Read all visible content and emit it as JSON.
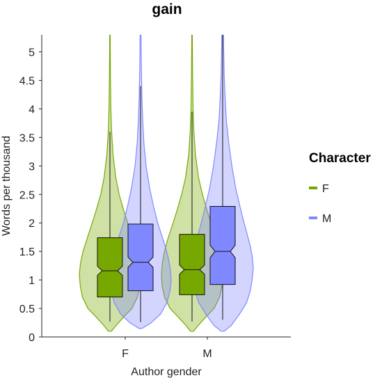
{
  "chart_data": {
    "type": "violin",
    "title": "gain",
    "xlabel": "Author gender",
    "ylabel": "Words per thousand",
    "categories": [
      "F",
      "M"
    ],
    "ylim": [
      0,
      5.3
    ],
    "yticks": [
      0,
      0.5,
      1,
      1.5,
      2,
      2.5,
      3,
      3.5,
      4,
      4.5,
      5
    ],
    "ytick_labels": [
      "0",
      "0.5",
      "1",
      "1.5",
      "2",
      "2.5",
      "3",
      "3.5",
      "4",
      "4.5",
      "5"
    ],
    "grid": false,
    "legend": {
      "title": "Character",
      "placement": "right",
      "entries": [
        {
          "label": "F",
          "color": "#77a800"
        },
        {
          "label": "M",
          "color": "#8088ff"
        }
      ]
    },
    "series": [
      {
        "name": "F",
        "color": "#77a800",
        "groups": [
          {
            "category": "F",
            "violin_min": 0.1,
            "violin_max": 5.3,
            "density_y": [
              0.1,
              0.2,
              0.35,
              0.5,
              0.7,
              0.9,
              1.1,
              1.3,
              1.5,
              1.7,
              1.9,
              2.2,
              2.5,
              2.8,
              3.2,
              3.6,
              4.0,
              4.5,
              5.0,
              5.3
            ],
            "density_w": [
              0.05,
              0.2,
              0.45,
              0.72,
              0.9,
              0.97,
              1.0,
              0.96,
              0.88,
              0.76,
              0.64,
              0.46,
              0.3,
              0.19,
              0.1,
              0.055,
              0.03,
              0.018,
              0.01,
              0.008
            ],
            "whisker_low": 0.27,
            "q1": 0.7,
            "notch_low": 1.08,
            "median": 1.16,
            "notch_high": 1.24,
            "q3": 1.74,
            "whisker_high": 3.6
          },
          {
            "category": "M",
            "violin_min": 0.1,
            "violin_max": 5.3,
            "density_y": [
              0.1,
              0.2,
              0.35,
              0.5,
              0.7,
              0.9,
              1.1,
              1.3,
              1.5,
              1.7,
              1.9,
              2.2,
              2.5,
              2.8,
              3.2,
              3.6,
              4.0,
              4.5,
              5.0,
              5.3
            ],
            "density_w": [
              0.05,
              0.2,
              0.45,
              0.72,
              0.9,
              0.98,
              1.0,
              0.97,
              0.9,
              0.8,
              0.68,
              0.5,
              0.34,
              0.21,
              0.11,
              0.06,
              0.034,
              0.02,
              0.012,
              0.008
            ],
            "whisker_low": 0.27,
            "q1": 0.74,
            "notch_low": 1.1,
            "median": 1.18,
            "notch_high": 1.26,
            "q3": 1.8,
            "whisker_high": 3.95
          }
        ]
      },
      {
        "name": "M",
        "color": "#8088ff",
        "groups": [
          {
            "category": "F",
            "violin_min": 0.15,
            "violin_max": 5.3,
            "density_y": [
              0.15,
              0.25,
              0.4,
              0.6,
              0.8,
              1.0,
              1.2,
              1.4,
              1.6,
              1.8,
              2.0,
              2.3,
              2.6,
              3.0,
              3.4,
              3.8,
              4.2,
              4.6,
              5.0,
              5.3
            ],
            "density_w": [
              0.05,
              0.35,
              0.65,
              0.86,
              0.96,
              1.0,
              0.97,
              0.9,
              0.8,
              0.68,
              0.56,
              0.42,
              0.3,
              0.18,
              0.11,
              0.07,
              0.045,
              0.03,
              0.02,
              0.015
            ],
            "whisker_low": 0.26,
            "q1": 0.81,
            "notch_low": 1.22,
            "median": 1.31,
            "notch_high": 1.4,
            "q3": 1.98,
            "whisker_high": 4.4
          },
          {
            "category": "M",
            "violin_min": 0.1,
            "violin_max": 5.3,
            "density_y": [
              0.1,
              0.2,
              0.4,
              0.6,
              0.8,
              1.0,
              1.2,
              1.4,
              1.6,
              1.8,
              2.0,
              2.3,
              2.6,
              3.0,
              3.4,
              3.8,
              4.2,
              4.6,
              5.0,
              5.3
            ],
            "density_w": [
              0.05,
              0.28,
              0.55,
              0.78,
              0.9,
              0.96,
              1.0,
              0.97,
              0.9,
              0.8,
              0.7,
              0.56,
              0.43,
              0.3,
              0.2,
              0.12,
              0.08,
              0.05,
              0.035,
              0.025
            ],
            "whisker_low": 0.3,
            "q1": 0.92,
            "notch_low": 1.39,
            "median": 1.5,
            "notch_high": 1.61,
            "q3": 2.29,
            "whisker_high": 5.3
          }
        ]
      }
    ]
  }
}
